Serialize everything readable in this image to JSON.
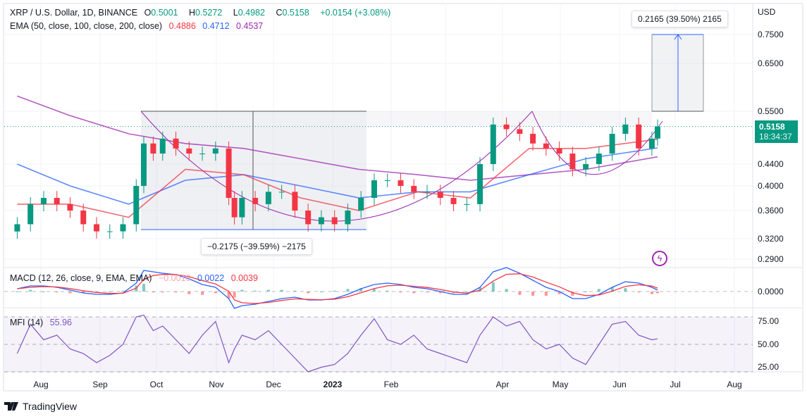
{
  "header": {
    "symbol": "XRP / U.S. Dollar, 1D, BINANCE",
    "open_label": "O",
    "open": "0.5001",
    "high_label": "H",
    "high": "0.5272",
    "low_label": "L",
    "low": "0.4982",
    "close_label": "C",
    "close": "0.5158",
    "change": "+0.0154 (+3.08%)"
  },
  "ema_legend": {
    "label": "EMA (50, close, 100, close, 200, close)",
    "ema50": "0.4886",
    "ema100": "0.4712",
    "ema200": "0.4537"
  },
  "macd_legend": {
    "label": "MACD (12, 26, close, 9, EMA, EMA)",
    "hist": "−0.0016",
    "macd": "0.0022",
    "signal": "0.0039"
  },
  "mfi_legend": {
    "label": "MFI (14)",
    "value": "55.96"
  },
  "price_axis": {
    "currency": "USD",
    "ticks": [
      "0.7500",
      "0.6500",
      "0.5500",
      "0.4400",
      "0.4000",
      "0.3600",
      "0.3200",
      "0.2900"
    ]
  },
  "macd_axis": {
    "ticks": [
      "0.0000"
    ]
  },
  "mfi_axis": {
    "ticks": [
      "75.00",
      "50.00",
      "25.00"
    ]
  },
  "current_price": {
    "price": "0.5158",
    "countdown": "18:34:37"
  },
  "time_axis": {
    "labels": [
      "Aug",
      "Sep",
      "Oct",
      "Nov",
      "Dec",
      "2023",
      "Feb",
      "Apr",
      "May",
      "Jun",
      "Jul",
      "Aug"
    ]
  },
  "measure_down": {
    "label": "−0.2175 (−39.59%) −2175"
  },
  "measure_up": {
    "label": "0.2165 (39.50%) 2165"
  },
  "branding": {
    "name": "TradingView"
  },
  "colors": {
    "up": "#089981",
    "down": "#f23645",
    "ema50": "#f23645",
    "ema100": "#2962ff",
    "ema200": "#9c27b0",
    "mfi": "#7e57c2"
  },
  "chart_data": {
    "type": "candlestick",
    "title": "XRP / U.S. Dollar, 1D, BINANCE",
    "ylabel": "USD",
    "yscale": "log",
    "ylim": [
      0.28,
      0.8
    ],
    "dates": [
      "2022-07-18",
      "2022-07-25",
      "2022-08-01",
      "2022-08-08",
      "2022-08-15",
      "2022-08-22",
      "2022-08-29",
      "2022-09-05",
      "2022-09-12",
      "2022-09-19",
      "2022-09-23",
      "2022-09-28",
      "2022-10-03",
      "2022-10-10",
      "2022-10-17",
      "2022-10-24",
      "2022-10-31",
      "2022-11-07",
      "2022-11-10",
      "2022-11-14",
      "2022-11-21",
      "2022-11-28",
      "2022-12-05",
      "2022-12-12",
      "2022-12-19",
      "2022-12-26",
      "2023-01-02",
      "2023-01-09",
      "2023-01-16",
      "2023-01-23",
      "2023-01-30",
      "2023-02-06",
      "2023-02-13",
      "2023-02-20",
      "2023-02-27",
      "2023-03-06",
      "2023-03-13",
      "2023-03-20",
      "2023-03-27",
      "2023-04-03",
      "2023-04-10",
      "2023-04-17",
      "2023-04-24",
      "2023-05-01",
      "2023-05-08",
      "2023-05-15",
      "2023-05-22",
      "2023-05-29",
      "2023-06-05",
      "2023-06-12",
      "2023-06-19",
      "2023-06-22"
    ],
    "close": [
      0.34,
      0.37,
      0.38,
      0.37,
      0.36,
      0.34,
      0.33,
      0.33,
      0.34,
      0.4,
      0.48,
      0.46,
      0.49,
      0.47,
      0.46,
      0.46,
      0.47,
      0.38,
      0.35,
      0.38,
      0.37,
      0.39,
      0.39,
      0.36,
      0.34,
      0.35,
      0.34,
      0.36,
      0.38,
      0.41,
      0.41,
      0.4,
      0.39,
      0.39,
      0.38,
      0.37,
      0.37,
      0.44,
      0.52,
      0.51,
      0.5,
      0.48,
      0.47,
      0.46,
      0.43,
      0.44,
      0.46,
      0.5,
      0.52,
      0.47,
      0.49,
      0.5158
    ],
    "ema_dates": [
      "2022-07-18",
      "2022-08-15",
      "2022-09-15",
      "2022-10-15",
      "2022-11-15",
      "2022-12-15",
      "2023-01-15",
      "2023-02-15",
      "2023-03-15",
      "2023-04-15",
      "2023-05-15",
      "2023-06-22"
    ],
    "ema50": [
      0.37,
      0.37,
      0.35,
      0.43,
      0.42,
      0.38,
      0.36,
      0.39,
      0.38,
      0.47,
      0.47,
      0.4886
    ],
    "ema100": [
      0.44,
      0.4,
      0.37,
      0.41,
      0.42,
      0.4,
      0.38,
      0.39,
      0.39,
      0.42,
      0.45,
      0.4712
    ],
    "ema200": [
      0.58,
      0.54,
      0.5,
      0.48,
      0.47,
      0.45,
      0.43,
      0.42,
      0.41,
      0.42,
      0.43,
      0.4537
    ],
    "macd": [
      0.004,
      0.008,
      0.008,
      0.006,
      0.002,
      -0.002,
      -0.004,
      -0.004,
      -0.002,
      0.012,
      0.03,
      0.028,
      0.026,
      0.024,
      0.018,
      0.01,
      0.006,
      -0.01,
      -0.024,
      -0.02,
      -0.018,
      -0.014,
      -0.01,
      -0.008,
      -0.012,
      -0.012,
      -0.01,
      -0.004,
      0.004,
      0.01,
      0.012,
      0.01,
      0.006,
      0.004,
      0.0,
      -0.004,
      -0.004,
      0.006,
      0.028,
      0.034,
      0.026,
      0.016,
      0.006,
      0.0,
      -0.01,
      -0.01,
      -0.004,
      0.006,
      0.014,
      0.012,
      0.006,
      0.002
    ],
    "mfi": [
      40,
      72,
      55,
      60,
      45,
      40,
      30,
      38,
      50,
      80,
      82,
      65,
      70,
      55,
      40,
      60,
      75,
      30,
      45,
      60,
      55,
      65,
      50,
      35,
      20,
      25,
      28,
      40,
      60,
      78,
      55,
      50,
      60,
      45,
      40,
      35,
      30,
      60,
      80,
      70,
      75,
      55,
      45,
      50,
      35,
      28,
      50,
      72,
      75,
      60,
      55,
      56
    ]
  }
}
